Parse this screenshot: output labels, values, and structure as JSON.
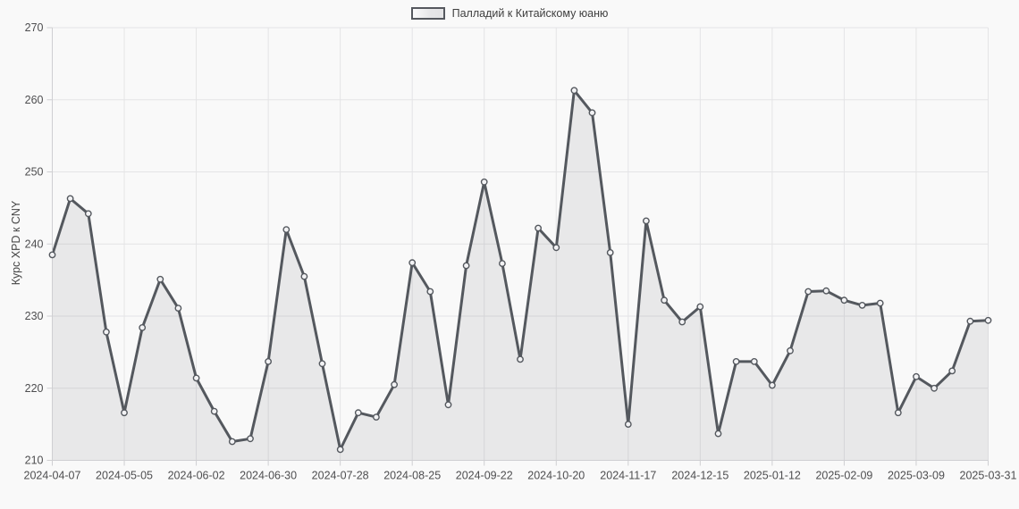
{
  "legend": {
    "label": "Палладий к Китайскому юаню"
  },
  "chart_data": {
    "type": "area",
    "title": "",
    "xlabel": "",
    "ylabel": "Курс XPD к CNY",
    "ylim": [
      210,
      270
    ],
    "y_ticks": [
      210,
      220,
      230,
      240,
      250,
      260,
      270
    ],
    "grid": true,
    "legend_position": "top-center",
    "x_tick_labels": [
      "2024-04-07",
      "2024-05-05",
      "2024-06-02",
      "2024-06-30",
      "2024-07-28",
      "2024-08-25",
      "2024-09-22",
      "2024-10-20",
      "2024-11-17",
      "2024-12-15",
      "2025-01-12",
      "2025-02-09",
      "2025-03-09",
      "2025-03-31"
    ],
    "x_tick_indices": [
      0,
      4,
      8,
      12,
      16,
      20,
      24,
      28,
      32,
      36,
      40,
      44,
      48,
      52
    ],
    "series": [
      {
        "name": "Палладий к Китайскому юаню",
        "values": [
          238.5,
          246.3,
          244.2,
          227.8,
          216.6,
          228.4,
          235.1,
          231.1,
          221.4,
          216.8,
          212.6,
          213.0,
          223.7,
          242.0,
          235.5,
          223.4,
          211.5,
          216.6,
          216.0,
          220.5,
          237.4,
          233.4,
          217.7,
          237.0,
          248.6,
          237.3,
          224.0,
          242.2,
          239.5,
          261.3,
          258.2,
          238.8,
          215.0,
          243.2,
          232.2,
          229.2,
          231.3,
          213.7,
          223.7,
          223.7,
          220.4,
          225.2,
          233.4,
          233.5,
          232.2,
          231.5,
          231.8,
          216.6,
          221.6,
          220.0,
          222.4,
          229.3,
          229.4
        ]
      }
    ],
    "colors": {
      "line": "#54585e",
      "marker_fill": "#f2f2f4",
      "area_fill": "rgba(84,88,94,0.10)",
      "grid": "#e4e4e6",
      "axis": "#cfcfd2",
      "tick_text": "#4e4e50",
      "background": "#f9f9f9"
    }
  }
}
